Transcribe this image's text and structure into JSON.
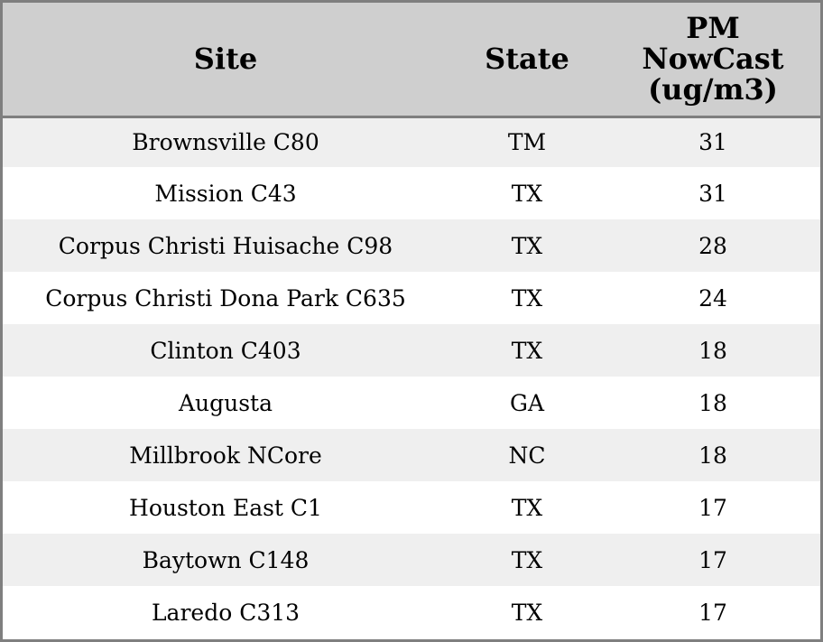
{
  "table": {
    "headers": {
      "site": "Site",
      "state": "State",
      "pm": [
        "PM",
        "NowCast",
        "(ug/m3)"
      ]
    },
    "rows": [
      {
        "site": "Brownsville C80",
        "state": "TM",
        "pm": "31"
      },
      {
        "site": "Mission C43",
        "state": "TX",
        "pm": "31"
      },
      {
        "site": "Corpus Christi Huisache C98",
        "state": "TX",
        "pm": "28"
      },
      {
        "site": "Corpus Christi Dona Park C635",
        "state": "TX",
        "pm": "24"
      },
      {
        "site": "Clinton C403",
        "state": "TX",
        "pm": "18"
      },
      {
        "site": "Augusta",
        "state": "GA",
        "pm": "18"
      },
      {
        "site": "Millbrook NCore",
        "state": "NC",
        "pm": "18"
      },
      {
        "site": "Houston East C1",
        "state": "TX",
        "pm": "17"
      },
      {
        "site": "Baytown C148",
        "state": "TX",
        "pm": "17"
      },
      {
        "site": "Laredo C313",
        "state": "TX",
        "pm": "17"
      }
    ]
  },
  "colors": {
    "header_bg": "#cfcfcf",
    "row_alt_bg": "#efefef",
    "row_bg": "#ffffff",
    "border": "#7f7f7f"
  }
}
